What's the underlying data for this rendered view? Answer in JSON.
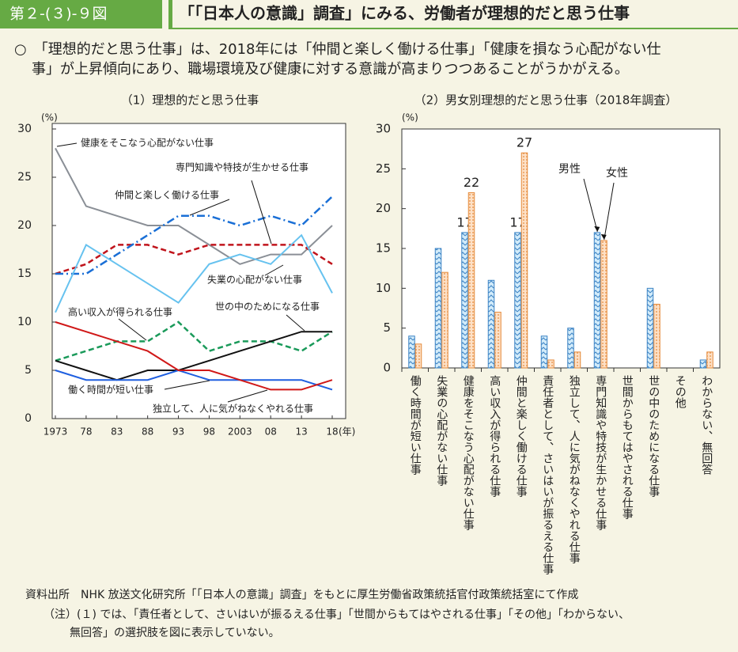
{
  "header": {
    "figure_number": "第２-(３)-９図",
    "title": "「「日本人の意識」調査」にみる、労働者が理想的だと思う仕事"
  },
  "summary": [
    "○　「理想的だと思う仕事」は、2018年には「仲間と楽しく働ける仕事」「健康を損なう心配がない仕",
    "事」が上昇傾向にあり、職場環境及び健康に対する意識が高まりつつあることがうかがえる。"
  ],
  "footnotes": [
    "資料出所　NHK 放送文化研究所「「日本人の意識」調査」をもとに厚生労働省政策統括官付政策統括室にて作成",
    "（注）(１) では、「責任者として、さいはいが振るえる仕事」「世間からもてはやされる仕事」「その他」「わからない、",
    "無回答」の選択肢を図に表示していない。"
  ],
  "chart_data": [
    {
      "type": "line",
      "title": "（1）理想的だと思う仕事",
      "y_unit": "(%)",
      "x_unit": "(年)",
      "categories": [
        "1973",
        "78",
        "83",
        "88",
        "93",
        "98",
        "2003",
        "08",
        "13",
        "18"
      ],
      "ylim": [
        0,
        30
      ],
      "yticks": [
        0,
        5,
        10,
        15,
        20,
        25,
        30
      ],
      "series": [
        {
          "name": "健康をそこなう心配がない仕事",
          "color": "#8a8f96",
          "line_style": "solid",
          "values": [
            28,
            22,
            21,
            20,
            20,
            18,
            16,
            17,
            17,
            20
          ]
        },
        {
          "name": "専門知識や特技が生かせる仕事",
          "color": "#c0141c",
          "line_style": "dashed",
          "values": [
            15,
            16,
            18,
            18,
            17,
            18,
            18,
            18,
            18,
            16
          ]
        },
        {
          "name": "仲間と楽しく働ける仕事",
          "color": "#1a6fd6",
          "line_style": "dashdot",
          "values": [
            15,
            15,
            17,
            19,
            21,
            21,
            20,
            21,
            20,
            23
          ]
        },
        {
          "name": "失業の心配がない仕事",
          "color": "#66c2ef",
          "line_style": "solid",
          "values": [
            11,
            18,
            16,
            14,
            12,
            16,
            17,
            16,
            19,
            13
          ]
        },
        {
          "name": "高い収入が得られる仕事",
          "color": "#1a9a5a",
          "line_style": "dashed",
          "values": [
            6,
            7,
            8,
            8,
            10,
            7,
            8,
            8,
            7,
            9
          ]
        },
        {
          "name": "世の中のためになる仕事",
          "color": "#111111",
          "line_style": "solid",
          "values": [
            6,
            5,
            4,
            5,
            5,
            6,
            7,
            8,
            9,
            9
          ]
        },
        {
          "name": "働く時間が短い仕事",
          "color": "#1f5fe0",
          "line_style": "solid",
          "values": [
            5,
            4,
            4,
            4,
            5,
            4,
            4,
            4,
            4,
            3
          ]
        },
        {
          "name": "独立して、人に気がねなくやれる仕事",
          "color": "#d01818",
          "line_style": "solid",
          "values": [
            10,
            9,
            8,
            7,
            5,
            5,
            4,
            3,
            3,
            4
          ]
        }
      ]
    },
    {
      "type": "bar",
      "title": "（2）男女別理想的だと思う仕事（2018年調査）",
      "y_unit": "(%)",
      "categories": [
        "働く時間が短い仕事",
        "失業の心配がない仕事",
        "健康をそこなう心配がない仕事",
        "高い収入が得られる仕事",
        "仲間と楽しく働ける仕事",
        "責任者として、さいはいが振るえる仕事",
        "独立して、人に気がねなくやれる仕事",
        "専門知識や特技が生かせる仕事",
        "世間からもてはやされる仕事",
        "世の中のためになる仕事",
        "その他",
        "わからない、無回答"
      ],
      "ylim": [
        0,
        30
      ],
      "yticks": [
        0,
        5,
        10,
        15,
        20,
        25,
        30
      ],
      "series": [
        {
          "name": "男性",
          "color": "#3b82c4",
          "values": [
            4,
            15,
            17,
            11,
            17,
            4,
            5,
            17,
            0,
            10,
            0,
            1
          ],
          "value_labels": [
            null,
            null,
            "17",
            null,
            "17",
            null,
            null,
            null,
            null,
            null,
            null,
            null
          ]
        },
        {
          "name": "女性",
          "color": "#e58a3a",
          "values": [
            3,
            12,
            22,
            7,
            27,
            1,
            2,
            16,
            0,
            8,
            0,
            2
          ],
          "value_labels": [
            null,
            null,
            "22",
            null,
            "27",
            null,
            null,
            null,
            null,
            null,
            null,
            null
          ]
        }
      ]
    }
  ]
}
